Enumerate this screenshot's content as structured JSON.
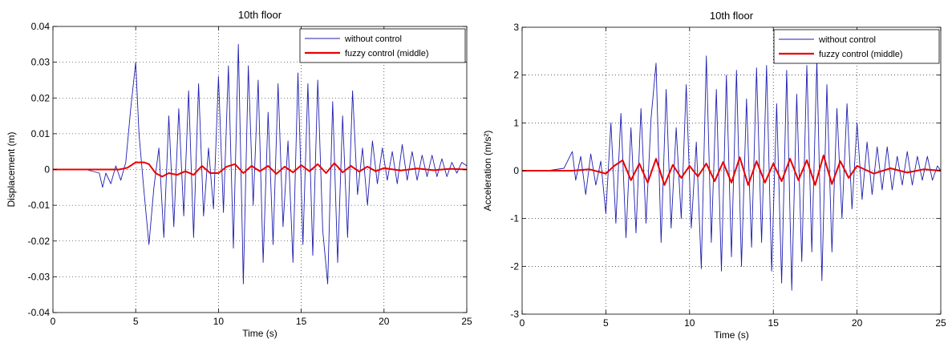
{
  "chart_data": [
    {
      "type": "line",
      "title": "10th floor",
      "xlabel": "Time (s)",
      "ylabel": "Displacement (m)",
      "xlim": [
        0,
        25
      ],
      "ylim": [
        -0.04,
        0.04
      ],
      "xticks": [
        0,
        5,
        10,
        15,
        20,
        25
      ],
      "xtick_labels": [
        "0",
        "5",
        "10",
        "15",
        "20",
        "25"
      ],
      "yticks": [
        -0.04,
        -0.03,
        -0.02,
        -0.01,
        0,
        0.01,
        0.02,
        0.03,
        0.04
      ],
      "ytick_labels": [
        "-0.04",
        "-0.03",
        "-0.02",
        "-0.01",
        "0",
        "0.01",
        "0.02",
        "0.03",
        "0.04"
      ],
      "grid": true,
      "legend_position": "top-right",
      "series": [
        {
          "name": "without control",
          "color": "#1f1fb0",
          "x": [
            0,
            1,
            2,
            2.8,
            3.0,
            3.2,
            3.5,
            3.8,
            4.1,
            4.4,
            4.7,
            5.0,
            5.2,
            5.5,
            5.8,
            6.1,
            6.4,
            6.7,
            7.0,
            7.3,
            7.6,
            7.9,
            8.2,
            8.5,
            8.8,
            9.1,
            9.4,
            9.7,
            10.0,
            10.3,
            10.6,
            10.9,
            11.2,
            11.5,
            11.8,
            12.1,
            12.4,
            12.7,
            13.0,
            13.3,
            13.6,
            13.9,
            14.2,
            14.5,
            14.8,
            15.1,
            15.4,
            15.7,
            16.0,
            16.3,
            16.6,
            16.9,
            17.2,
            17.5,
            17.8,
            18.1,
            18.4,
            18.7,
            19.0,
            19.3,
            19.6,
            19.9,
            20.2,
            20.5,
            20.8,
            21.1,
            21.4,
            21.7,
            22.0,
            22.3,
            22.6,
            22.9,
            23.2,
            23.5,
            23.8,
            24.1,
            24.4,
            24.7,
            25.0
          ],
          "values": [
            0,
            0,
            0,
            -0.001,
            -0.005,
            -0.001,
            -0.004,
            0.001,
            -0.003,
            0.002,
            0.017,
            0.03,
            0.01,
            -0.006,
            -0.021,
            -0.005,
            0.006,
            -0.019,
            0.015,
            -0.016,
            0.017,
            -0.013,
            0.022,
            -0.019,
            0.024,
            -0.013,
            0.006,
            -0.011,
            0.026,
            -0.012,
            0.029,
            -0.022,
            0.035,
            -0.032,
            0.029,
            -0.01,
            0.025,
            -0.026,
            0.016,
            -0.021,
            0.024,
            -0.016,
            0.008,
            -0.026,
            0.027,
            -0.021,
            0.024,
            -0.024,
            0.025,
            -0.017,
            -0.032,
            0.019,
            -0.026,
            0.015,
            -0.019,
            0.022,
            -0.007,
            0.006,
            -0.01,
            0.008,
            -0.004,
            0.006,
            -0.003,
            0.005,
            -0.004,
            0.007,
            -0.003,
            0.005,
            -0.003,
            0.004,
            -0.002,
            0.004,
            -0.002,
            0.003,
            -0.002,
            0.002,
            -0.001,
            0.002,
            0.001
          ]
        },
        {
          "name": "fuzzy control (middle)",
          "color": "#e80000",
          "x": [
            0,
            2,
            4,
            4.5,
            5.0,
            5.5,
            5.8,
            6.2,
            6.6,
            7.0,
            7.5,
            8.0,
            8.5,
            9.0,
            9.5,
            10.0,
            10.5,
            11.0,
            11.5,
            12.0,
            12.5,
            13.0,
            13.5,
            14.0,
            14.5,
            15.0,
            15.5,
            16.0,
            16.5,
            17.0,
            17.5,
            18.0,
            18.5,
            19.0,
            19.5,
            20.0,
            21.0,
            22.0,
            23.0,
            24.0,
            25.0
          ],
          "values": [
            0,
            0,
            0,
            0.0005,
            0.002,
            0.002,
            0.0015,
            -0.001,
            -0.002,
            -0.001,
            -0.0015,
            -0.0005,
            -0.0015,
            0.001,
            -0.001,
            -0.001,
            0.0008,
            0.0015,
            -0.001,
            0.001,
            -0.0005,
            0.001,
            -0.0012,
            0.0008,
            -0.0008,
            0.0012,
            -0.0005,
            0.0015,
            -0.001,
            0.0018,
            -0.0008,
            0.001,
            -0.0006,
            0.0008,
            -0.0005,
            0.0004,
            -0.0003,
            0.0003,
            -0.0002,
            0.0002,
            0
          ]
        }
      ]
    },
    {
      "type": "line",
      "title": "10th floor",
      "xlabel": "Time (s)",
      "ylabel": "Acceleration (m/s²)",
      "xlim": [
        0,
        25
      ],
      "ylim": [
        -3,
        3
      ],
      "xticks": [
        0,
        5,
        10,
        15,
        20,
        25
      ],
      "xtick_labels": [
        "0",
        "5",
        "10",
        "15",
        "20",
        "25"
      ],
      "yticks": [
        -3,
        -2,
        -1,
        0,
        1,
        2,
        3
      ],
      "ytick_labels": [
        "-3",
        "-2",
        "-1",
        "0",
        "1",
        "2",
        "3"
      ],
      "grid": true,
      "legend_position": "top-right",
      "series": [
        {
          "name": "without control",
          "color": "#1f1fb0",
          "x": [
            0,
            1.5,
            2.5,
            3.0,
            3.2,
            3.5,
            3.8,
            4.1,
            4.4,
            4.7,
            5.0,
            5.3,
            5.6,
            5.9,
            6.2,
            6.5,
            6.8,
            7.1,
            7.4,
            7.7,
            8.0,
            8.3,
            8.6,
            8.9,
            9.2,
            9.5,
            9.8,
            10.1,
            10.4,
            10.7,
            11.0,
            11.3,
            11.6,
            11.9,
            12.2,
            12.5,
            12.8,
            13.1,
            13.4,
            13.7,
            14.0,
            14.3,
            14.6,
            14.9,
            15.2,
            15.5,
            15.8,
            16.1,
            16.4,
            16.7,
            17.0,
            17.3,
            17.6,
            17.9,
            18.2,
            18.5,
            18.8,
            19.1,
            19.4,
            19.7,
            20.0,
            20.3,
            20.6,
            20.9,
            21.2,
            21.5,
            21.8,
            22.1,
            22.4,
            22.7,
            23.0,
            23.3,
            23.6,
            23.9,
            24.2,
            24.5,
            24.8,
            25.0
          ],
          "values": [
            0,
            0,
            0.05,
            0.4,
            -0.2,
            0.3,
            -0.5,
            0.35,
            -0.3,
            0.2,
            -0.9,
            1.0,
            -1.1,
            1.2,
            -1.4,
            0.9,
            -1.3,
            1.3,
            -1.1,
            1.1,
            2.25,
            -1.5,
            1.7,
            -1.2,
            0.9,
            -1.0,
            1.8,
            -1.2,
            0.6,
            -2.05,
            2.4,
            -1.5,
            1.7,
            -2.1,
            2.0,
            -1.8,
            2.1,
            -2.0,
            1.5,
            -1.6,
            2.15,
            -1.5,
            2.2,
            -2.1,
            1.4,
            -2.35,
            2.1,
            -2.5,
            1.6,
            -1.9,
            2.2,
            -1.7,
            2.3,
            -2.3,
            1.8,
            -1.7,
            1.3,
            -1.0,
            1.4,
            -0.8,
            1.0,
            -0.6,
            0.6,
            -0.5,
            0.5,
            -0.4,
            0.5,
            -0.4,
            0.3,
            -0.3,
            0.4,
            -0.3,
            0.3,
            -0.2,
            0.3,
            -0.2,
            0.1,
            0.0
          ]
        },
        {
          "name": "fuzzy control (middle)",
          "color": "#e80000",
          "x": [
            0,
            3.0,
            4.0,
            5.0,
            5.5,
            6.0,
            6.5,
            7.0,
            7.5,
            8.0,
            8.5,
            9.0,
            9.5,
            10.0,
            10.5,
            11.0,
            11.5,
            12.0,
            12.5,
            13.0,
            13.5,
            14.0,
            14.5,
            15.0,
            15.5,
            16.0,
            16.5,
            17.0,
            17.5,
            18.0,
            18.5,
            19.0,
            19.5,
            20.0,
            21.0,
            22.0,
            23.0,
            24.0,
            25.0
          ],
          "values": [
            0,
            0,
            0.03,
            -0.06,
            0.1,
            0.22,
            -0.2,
            0.15,
            -0.25,
            0.25,
            -0.3,
            0.12,
            -0.15,
            0.1,
            -0.12,
            0.15,
            -0.22,
            0.18,
            -0.25,
            0.28,
            -0.3,
            0.2,
            -0.25,
            0.15,
            -0.22,
            0.25,
            -0.2,
            0.22,
            -0.3,
            0.32,
            -0.28,
            0.2,
            -0.15,
            0.1,
            -0.06,
            0.05,
            -0.04,
            0.03,
            0
          ]
        }
      ]
    }
  ]
}
